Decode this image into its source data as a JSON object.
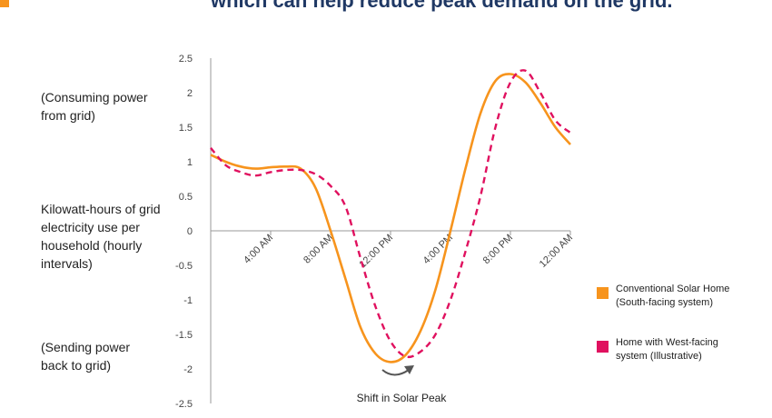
{
  "title": "which can help reduce peak demand on the grid.",
  "annotations": {
    "top": "(Consuming power from grid)",
    "middle": "Kilowatt-hours of grid electricity use per household (hourly intervals)",
    "bottom": "(Sending power back to grid)",
    "shift": "Shift in Solar Peak"
  },
  "colors": {
    "conventional": "#f7941d",
    "west": "#e0115f",
    "axis": "#999999",
    "title": "#1f3864"
  },
  "chart_data": {
    "type": "line",
    "title": "which can help reduce peak demand on the grid.",
    "ylabel": "Kilowatt-hours of grid electricity use per household (hourly intervals)",
    "xlabel": "",
    "ylim": [
      -2.5,
      2.5
    ],
    "xlim": [
      0,
      24
    ],
    "y_ticks": [
      "2.5",
      "2",
      "1.5",
      "1",
      "0.5",
      "0",
      "-0.5",
      "-1",
      "-1.5",
      "-2",
      "-2.5"
    ],
    "x_tick_labels": [
      {
        "hour": 4,
        "label": "4:00 AM"
      },
      {
        "hour": 8,
        "label": "8:00 AM"
      },
      {
        "hour": 12,
        "label": "12:00 PM"
      },
      {
        "hour": 16,
        "label": "4:00 PM"
      },
      {
        "hour": 20,
        "label": "8:00 PM"
      },
      {
        "hour": 24,
        "label": "12:00 AM"
      }
    ],
    "series": [
      {
        "name": "Conventional Solar Home (South-facing system)",
        "style": "solid",
        "x": [
          0,
          1,
          2,
          3,
          4,
          5,
          6,
          7,
          8,
          9,
          10,
          11,
          12,
          13,
          14,
          15,
          16,
          17,
          18,
          19,
          20,
          21,
          22,
          23,
          24
        ],
        "values": [
          1.1,
          1.0,
          0.93,
          0.9,
          0.92,
          0.93,
          0.9,
          0.62,
          0.0,
          -0.7,
          -1.4,
          -1.78,
          -1.9,
          -1.8,
          -1.45,
          -0.85,
          0.0,
          0.9,
          1.7,
          2.17,
          2.27,
          2.15,
          1.85,
          1.5,
          1.25
        ]
      },
      {
        "name": "Home with West-facing system (Illustrative)",
        "style": "dashed",
        "x": [
          0,
          1,
          2,
          3,
          4,
          5,
          6,
          7,
          8,
          9,
          10,
          11,
          12,
          13,
          14,
          15,
          16,
          17,
          18,
          19,
          20,
          21,
          22,
          23,
          24
        ],
        "values": [
          1.2,
          0.95,
          0.85,
          0.8,
          0.85,
          0.88,
          0.88,
          0.82,
          0.65,
          0.35,
          -0.4,
          -1.1,
          -1.6,
          -1.82,
          -1.75,
          -1.5,
          -1.0,
          -0.3,
          0.5,
          1.5,
          2.15,
          2.32,
          2.0,
          1.6,
          1.42
        ]
      }
    ],
    "legend_position": "right",
    "annotations": [
      "Shift in Solar Peak"
    ]
  }
}
